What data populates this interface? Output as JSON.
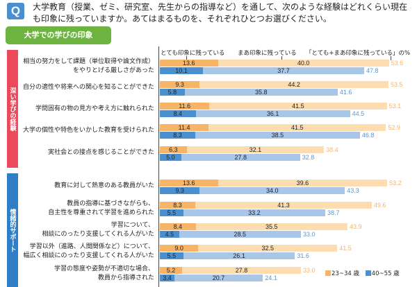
{
  "question": {
    "icon": "Q",
    "text": "大学教育（授業、ゼミ、研究室、先生からの指導など）を通して、次のような経験はどれくらい現在も印象に残っていますか。あてはまるものを、それぞれひとつお選びください。"
  },
  "section_title": "大学での学びの印象",
  "colors": {
    "young_dark": "#f8b466",
    "young_light": "#fddcb0",
    "old_dark": "#4a8fd0",
    "old_light": "#a8c6e8",
    "group_deep": "#ea4a5a",
    "group_support": "#2f7fc6",
    "section_tab": "#6db33f"
  },
  "chart_data": {
    "type": "bar",
    "orientation": "horizontal",
    "stacked": true,
    "title": "大学での学びの印象",
    "header_labels": {
      "very": "とても印象に残っている",
      "somewhat": "まあ印象に残っている",
      "total": "「とても+まあ印象に残っている」の%"
    },
    "legend": [
      {
        "name": "23~34 歳",
        "color": "#f8b466"
      },
      {
        "name": "40~55 歳",
        "color": "#4a8fd0"
      }
    ],
    "legend_placement": "bottom-right",
    "groups": [
      {
        "name": "深い学びの経験",
        "items": [
          {
            "label": [
              "相当の努力をして課題（単位取得や論文作成）",
              "をやりとげる厳しさがあった"
            ],
            "young": {
              "very": 13.6,
              "somewhat": 40.0,
              "total": 53.6
            },
            "old": {
              "very": 10.1,
              "somewhat": 37.7,
              "total": 47.8
            }
          },
          {
            "label": [
              "自分の適性や将来への関心を知ることができた"
            ],
            "young": {
              "very": 9.3,
              "somewhat": 44.2,
              "total": 53.5
            },
            "old": {
              "very": 5.8,
              "somewhat": 35.8,
              "total": 41.6
            }
          },
          {
            "label": [
              "学問固有の物の見方や考え方に触れられた"
            ],
            "young": {
              "very": 11.6,
              "somewhat": 41.5,
              "total": 53.1
            },
            "old": {
              "very": 8.4,
              "somewhat": 36.1,
              "total": 44.5
            }
          },
          {
            "label": [
              "大学の個性や特色をいかした教育を受けられた"
            ],
            "young": {
              "very": 11.4,
              "somewhat": 41.5,
              "total": 52.9
            },
            "old": {
              "very": 8.3,
              "somewhat": 38.5,
              "total": 46.8
            }
          },
          {
            "label": [
              "実社会との接点を感じることができた"
            ],
            "young": {
              "very": 6.3,
              "somewhat": 32.1,
              "total": 38.4
            },
            "old": {
              "very": 5.0,
              "somewhat": 27.8,
              "total": 32.8
            }
          }
        ]
      },
      {
        "name": "情緒的サポート",
        "items": [
          {
            "label": [
              "教育に対して熱意のある教員がいた"
            ],
            "young": {
              "very": 13.6,
              "somewhat": 39.6,
              "total": 53.2
            },
            "old": {
              "very": 9.3,
              "somewhat": 34.0,
              "total": 43.3
            }
          },
          {
            "label": [
              "教員の指導に基づきながらも、",
              "自主性を尊重されて学習を進められた"
            ],
            "young": {
              "very": 8.3,
              "somewhat": 41.3,
              "total": 49.6
            },
            "old": {
              "very": 5.5,
              "somewhat": 33.2,
              "total": 38.7
            }
          },
          {
            "label": [
              "学習について、",
              "相談にのったり支援してくれる人がいた"
            ],
            "young": {
              "very": 8.4,
              "somewhat": 35.5,
              "total": 43.9
            },
            "old": {
              "very": 4.5,
              "somewhat": 28.5,
              "total": 33.0
            }
          },
          {
            "label": [
              "学習以外（進路、人間関係など）について、",
              "幅広く相談にのったり支援してくれる人がいた"
            ],
            "young": {
              "very": 9.0,
              "somewhat": 32.5,
              "total": 41.5
            },
            "old": {
              "very": 5.5,
              "somewhat": 26.1,
              "total": 31.6
            }
          },
          {
            "label": [
              "学習の態度や姿勢が不適切な場合、",
              "教員から指導された"
            ],
            "young": {
              "very": 5.2,
              "somewhat": 27.8,
              "total": 33.0
            },
            "old": {
              "very": 3.4,
              "somewhat": 20.7,
              "total": 24.1
            }
          }
        ]
      }
    ],
    "xlim": [
      0,
      60
    ],
    "units": "%"
  }
}
